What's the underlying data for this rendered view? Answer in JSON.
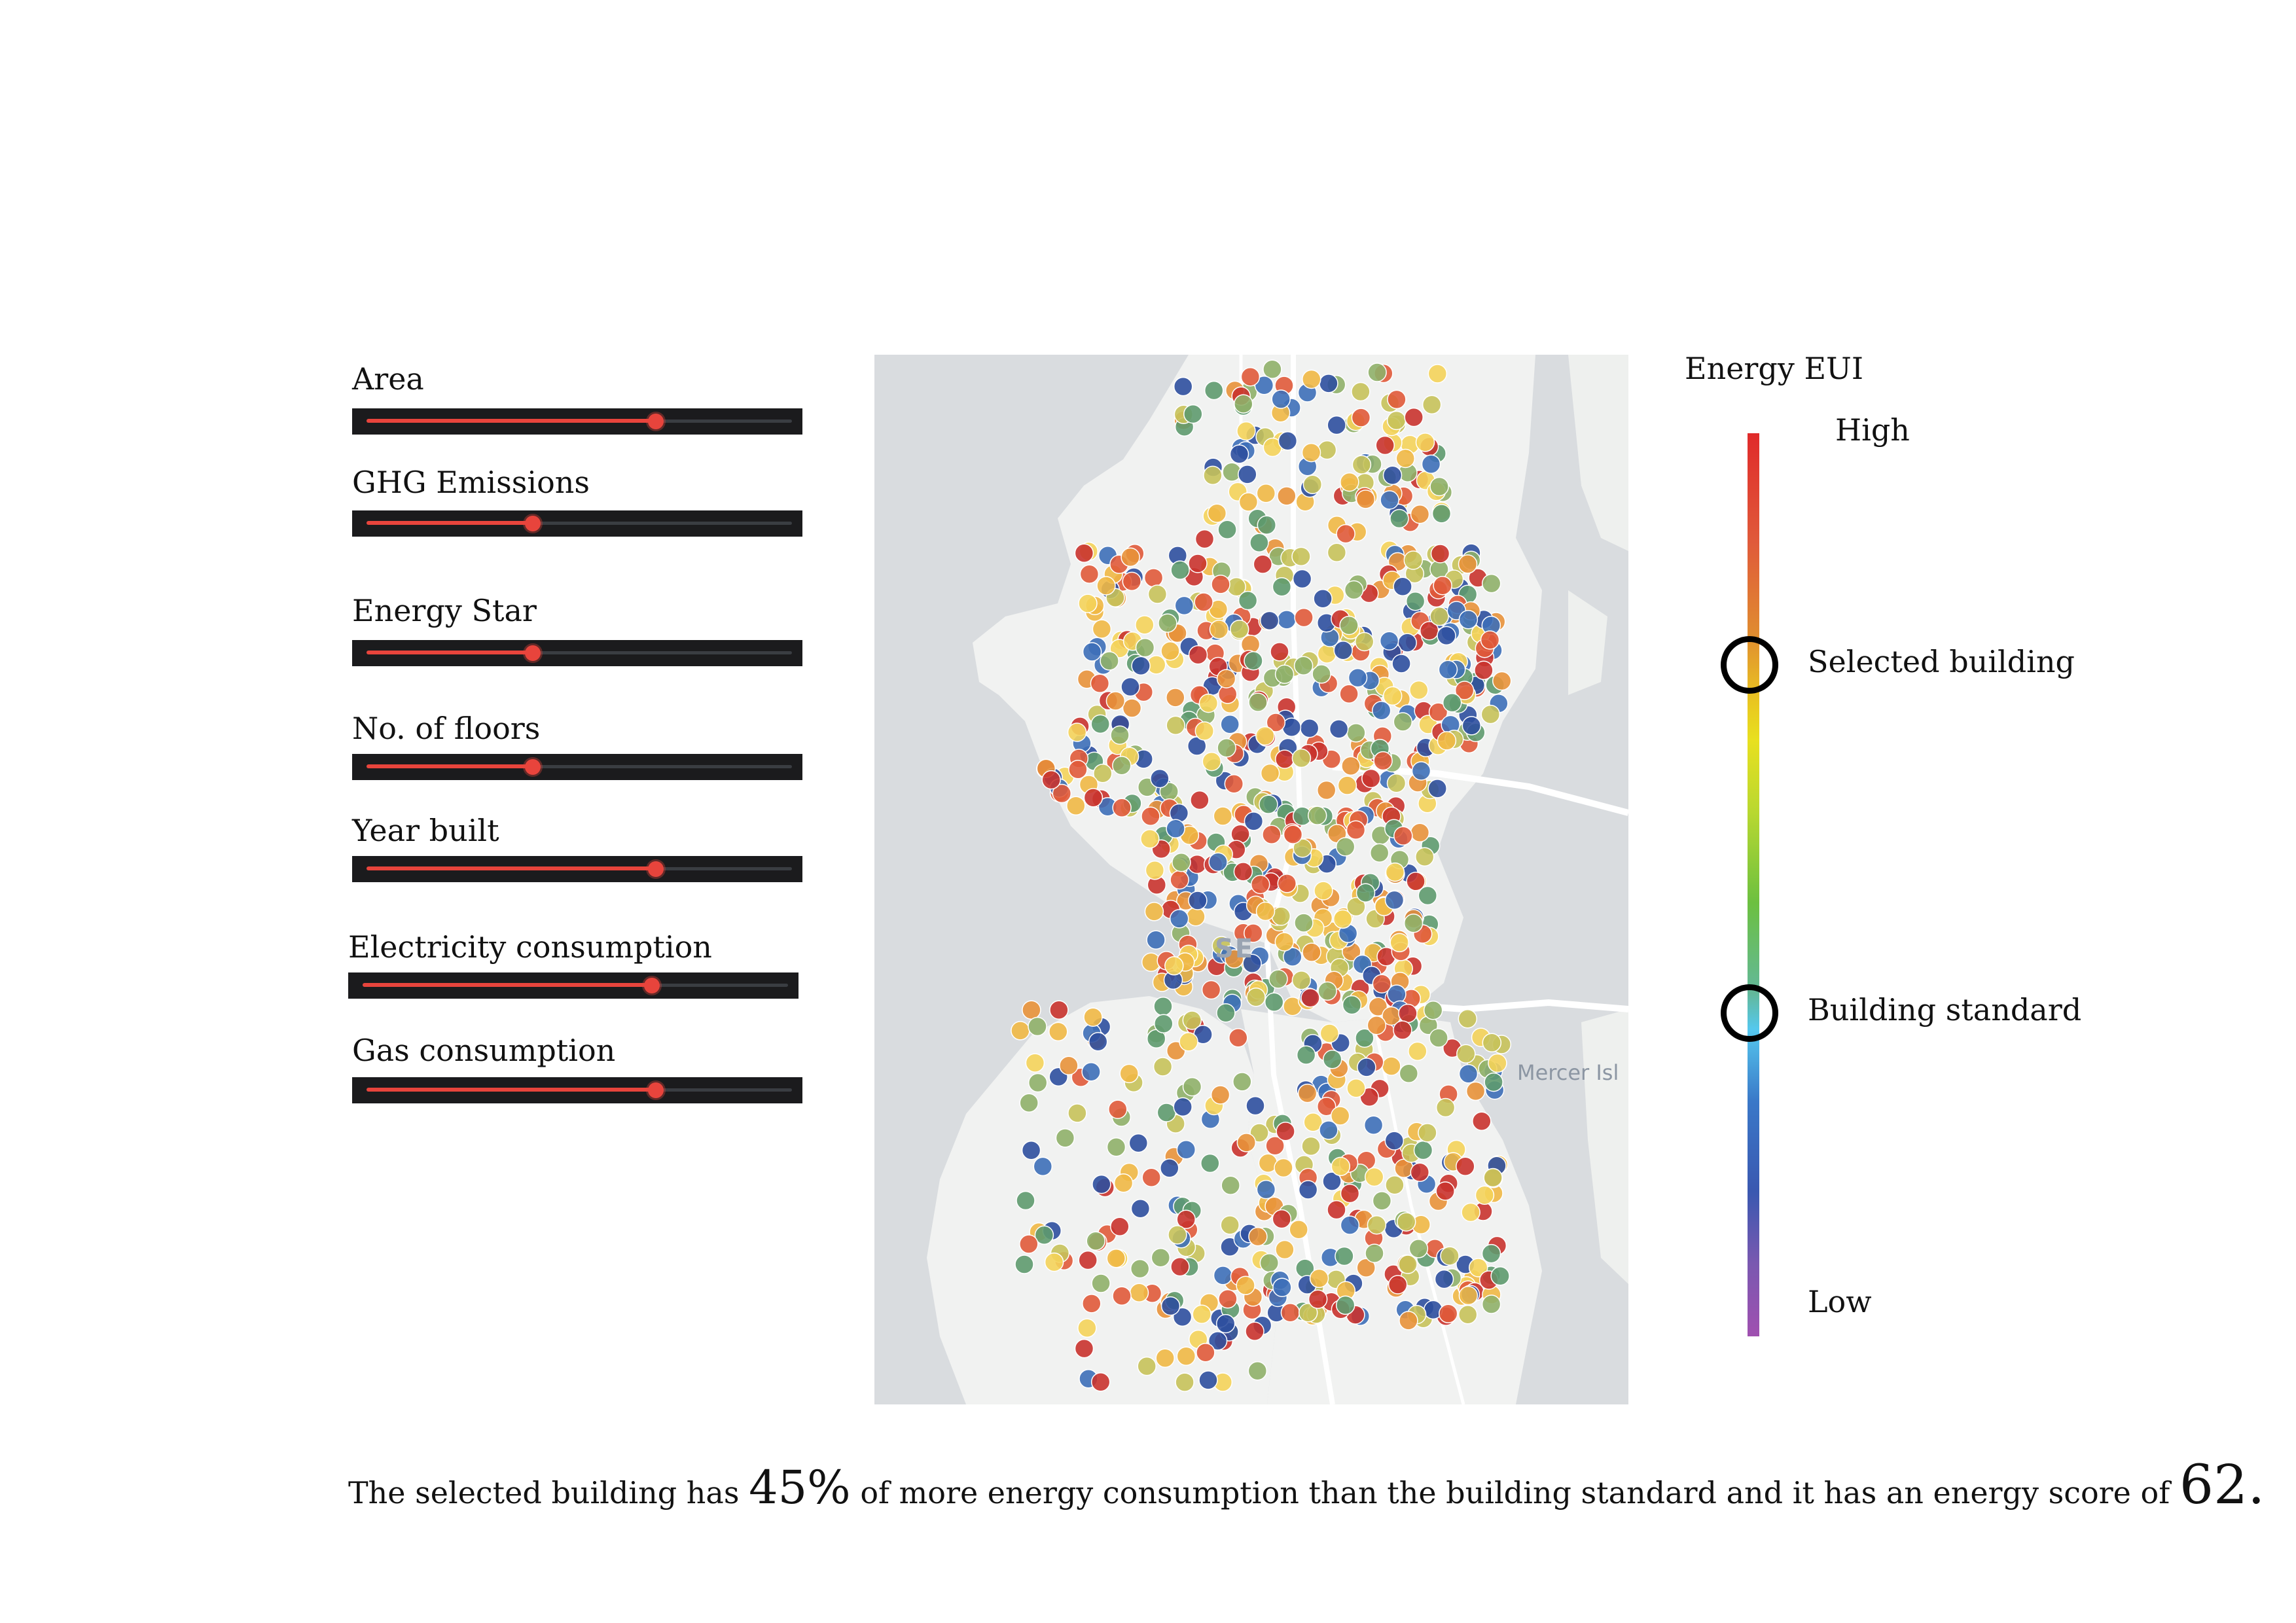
{
  "filters": [
    {
      "label": "Area",
      "value": 0.68
    },
    {
      "label": "GHG Emissions",
      "value": 0.39
    },
    {
      "label": "Energy Star",
      "value": 0.39
    },
    {
      "label": "No. of floors",
      "value": 0.39
    },
    {
      "label": "Year built",
      "value": 0.68
    },
    {
      "label": "Electricity consumption",
      "value": 0.68
    },
    {
      "label": "Gas consumption",
      "value": 0.68
    }
  ],
  "map": {
    "city_label": "SE",
    "island_label": "Mercer Isl"
  },
  "legend": {
    "title": "Energy EUI",
    "high": "High",
    "selected": "Selected building",
    "standard": "Building standard",
    "low": "Low",
    "colors": [
      "#e02a2a",
      "#e08a30",
      "#e8e020",
      "#6cc040",
      "#55c8ee",
      "#3a58b0",
      "#a050b0"
    ]
  },
  "summary": {
    "part1": "The selected building has",
    "percent": "45%",
    "part2": "of more energy consumption than the building standard and it has an energy score of",
    "score": "62."
  },
  "dot_colors": [
    "#c9332e",
    "#e05a3a",
    "#e8923a",
    "#f0b845",
    "#f4d35a",
    "#c7c25a",
    "#8fb069",
    "#5e9a6e",
    "#3d6fb8",
    "#2d4f9e"
  ]
}
